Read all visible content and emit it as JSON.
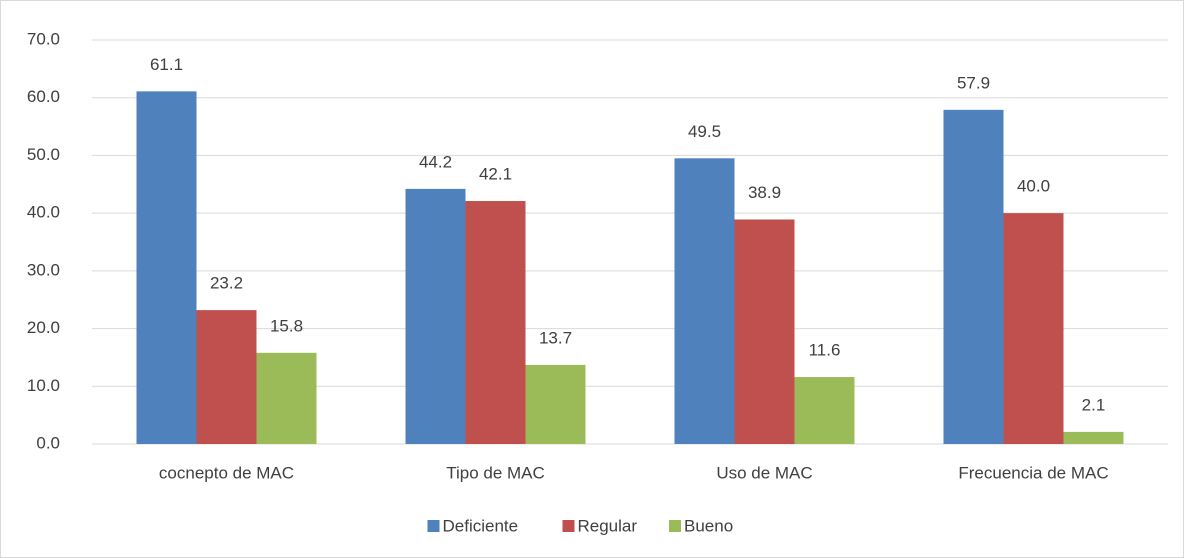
{
  "chart_data": {
    "type": "bar",
    "categories": [
      "cocnepto de MAC",
      "Tipo de MAC",
      "Uso de MAC",
      "Frecuencia de MAC"
    ],
    "series": [
      {
        "name": "Deficiente",
        "color": "#4f81bd",
        "values": [
          61.1,
          44.2,
          49.5,
          57.9
        ],
        "value_labels": [
          "61.1",
          "44.2",
          "49.5",
          "57.9"
        ]
      },
      {
        "name": "Regular",
        "color": "#c0504d",
        "values": [
          23.2,
          42.1,
          38.9,
          40
        ],
        "value_labels": [
          "23.2",
          "42.1",
          "38.9",
          "40.0"
        ]
      },
      {
        "name": "Bueno",
        "color": "#9bbb59",
        "values": [
          15.8,
          13.7,
          11.6,
          2.1
        ],
        "value_labels": [
          "15.8",
          "13.7",
          "11.6",
          "2.1"
        ]
      }
    ],
    "ylim": [
      0,
      70
    ],
    "yticks": [
      {
        "value": 0,
        "label": "0.0"
      },
      {
        "value": 10,
        "label": "10.0"
      },
      {
        "value": 20,
        "label": "20.0"
      },
      {
        "value": 30,
        "label": "30.0"
      },
      {
        "value": 40,
        "label": "40.0"
      },
      {
        "value": 50,
        "label": "50.0"
      },
      {
        "value": 60,
        "label": "60.0"
      },
      {
        "value": 70,
        "label": "70.0"
      }
    ],
    "grid": true,
    "legend": "bottom"
  }
}
